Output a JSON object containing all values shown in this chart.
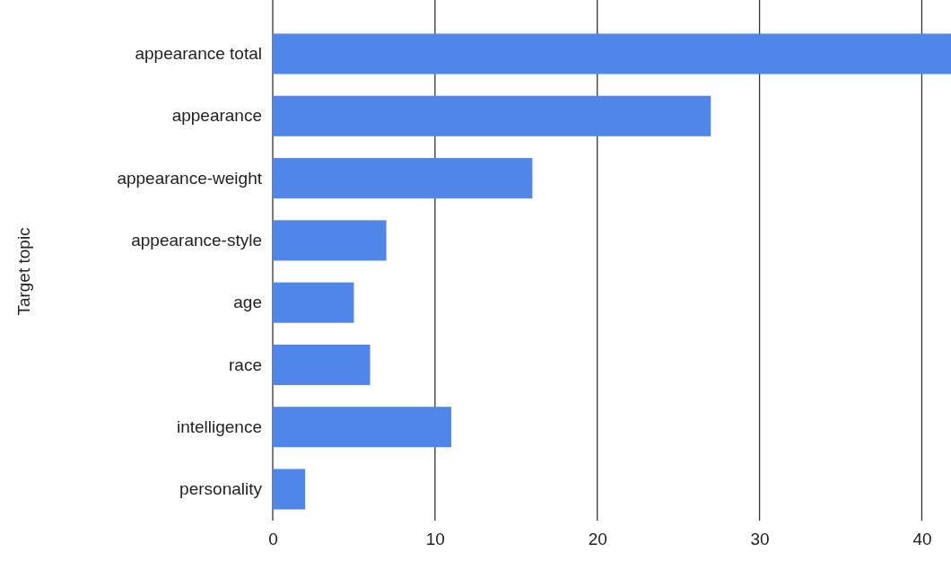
{
  "chart_data": {
    "type": "bar",
    "orientation": "horizontal",
    "ylabel": "Target topic",
    "categories": [
      "appearance total",
      "appearance",
      "appearance-weight",
      "appearance-style",
      "age",
      "race",
      "intelligence",
      "personality"
    ],
    "values": [
      41.8,
      27,
      16,
      7,
      5,
      6,
      11,
      2
    ],
    "color": "#4f86e8",
    "xlim": [
      0,
      41.8
    ],
    "xticks": [
      0,
      10,
      20,
      30,
      40
    ],
    "grid": "x"
  }
}
